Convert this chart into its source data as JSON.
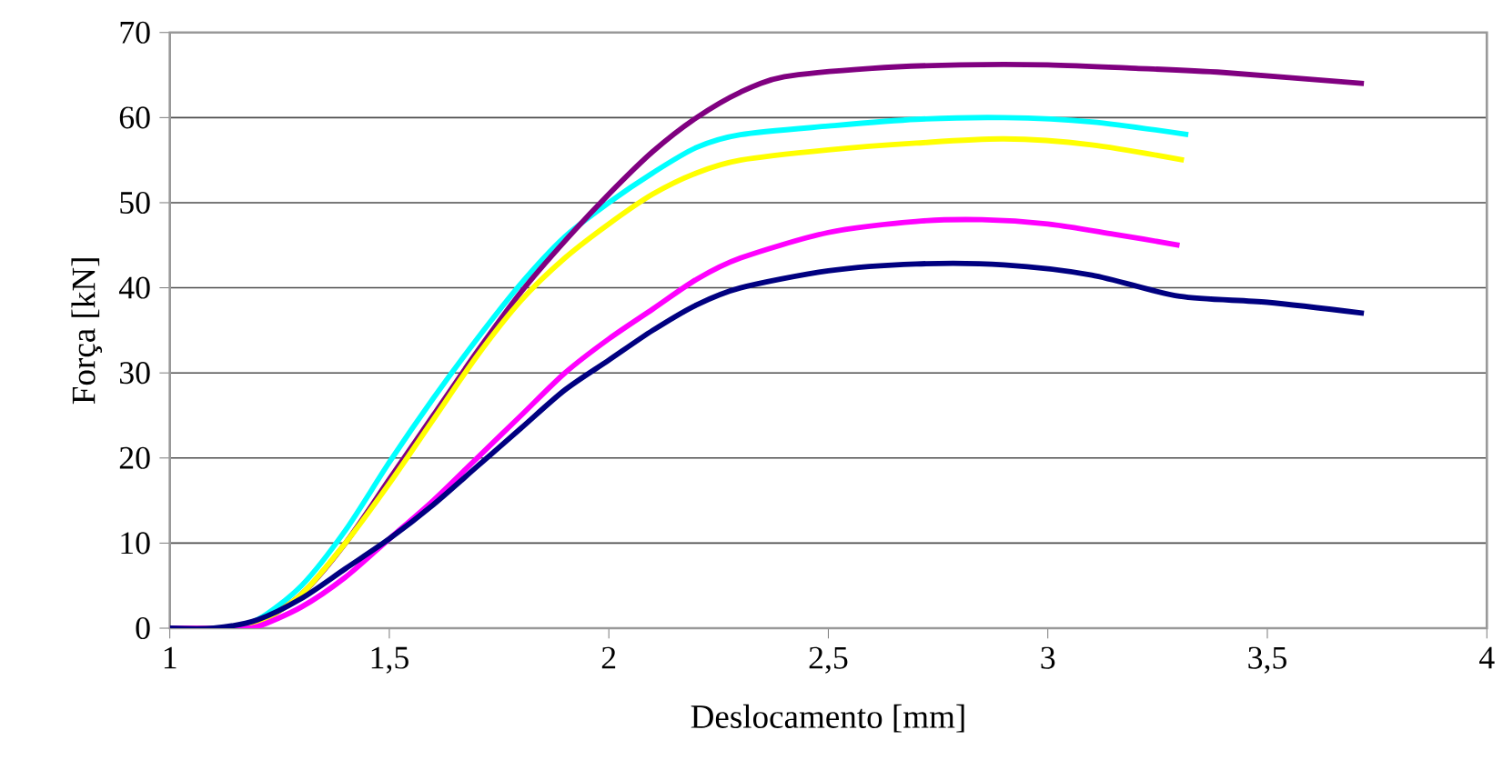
{
  "chart_data": {
    "type": "line",
    "xlabel": "Deslocamento [mm]",
    "ylabel": "Força [kN]",
    "xlim": [
      1,
      4
    ],
    "ylim": [
      0,
      70
    ],
    "xticks": [
      1,
      {
        "value": 1.5,
        "label": "1,5"
      },
      2,
      {
        "value": 2.5,
        "label": "2,5"
      },
      3,
      {
        "value": 3.5,
        "label": "3,5"
      },
      4
    ],
    "yticks": [
      0,
      10,
      20,
      30,
      40,
      50,
      60,
      70
    ],
    "grid": "y",
    "marker": "none",
    "line_style": "solid",
    "series": [
      {
        "color": "#00ffff",
        "x": [
          1.0,
          1.12,
          1.2,
          1.3,
          1.4,
          1.5,
          1.6,
          1.7,
          1.8,
          1.9,
          2.0,
          2.1,
          2.2,
          2.3,
          2.5,
          2.7,
          2.9,
          3.1,
          3.32
        ],
        "values": [
          0,
          0,
          1,
          5,
          11.5,
          19.5,
          27,
          34,
          40.5,
          46,
          50,
          53.5,
          56.5,
          58,
          59,
          59.8,
          60,
          59.5,
          58
        ]
      },
      {
        "color": "#800080",
        "x": [
          1.0,
          1.15,
          1.2,
          1.3,
          1.4,
          1.5,
          1.6,
          1.7,
          1.8,
          1.9,
          2.0,
          2.1,
          2.2,
          2.3,
          2.4,
          2.6,
          2.8,
          3.0,
          3.2,
          3.4,
          3.72
        ],
        "values": [
          0,
          0,
          0.5,
          4,
          10,
          17.5,
          25,
          32.5,
          39.5,
          45.5,
          51,
          56,
          60,
          63,
          64.8,
          65.8,
          66.2,
          66.2,
          65.8,
          65.3,
          64
        ]
      },
      {
        "color": "#ffff00",
        "x": [
          1.0,
          1.15,
          1.2,
          1.3,
          1.4,
          1.5,
          1.6,
          1.7,
          1.8,
          1.9,
          2.0,
          2.1,
          2.2,
          2.3,
          2.5,
          2.7,
          2.9,
          3.1,
          3.31
        ],
        "values": [
          0,
          0,
          0.5,
          4,
          10,
          17,
          24.5,
          32,
          38.5,
          43.5,
          47.5,
          51,
          53.5,
          55,
          56.2,
          57,
          57.5,
          56.8,
          55
        ]
      },
      {
        "color": "#ff00ff",
        "x": [
          1.0,
          1.15,
          1.2,
          1.3,
          1.4,
          1.5,
          1.6,
          1.7,
          1.8,
          1.9,
          2.0,
          2.1,
          2.2,
          2.3,
          2.5,
          2.7,
          2.85,
          3.0,
          3.15,
          3.3
        ],
        "values": [
          0,
          0,
          0.2,
          2.5,
          6,
          10.5,
          15,
          20,
          25,
          30,
          34,
          37.5,
          41,
          43.5,
          46.5,
          47.8,
          48,
          47.5,
          46.3,
          45
        ]
      },
      {
        "color": "#000080",
        "x": [
          1.0,
          1.1,
          1.2,
          1.3,
          1.4,
          1.5,
          1.6,
          1.7,
          1.8,
          1.9,
          2.0,
          2.1,
          2.2,
          2.3,
          2.5,
          2.7,
          2.9,
          3.1,
          3.3,
          3.5,
          3.72
        ],
        "values": [
          0,
          0,
          1,
          3.5,
          7,
          10.5,
          14.5,
          19,
          23.5,
          28,
          31.5,
          35,
          38,
          40,
          42,
          42.8,
          42.7,
          41.5,
          39,
          38.3,
          37
        ]
      }
    ]
  }
}
